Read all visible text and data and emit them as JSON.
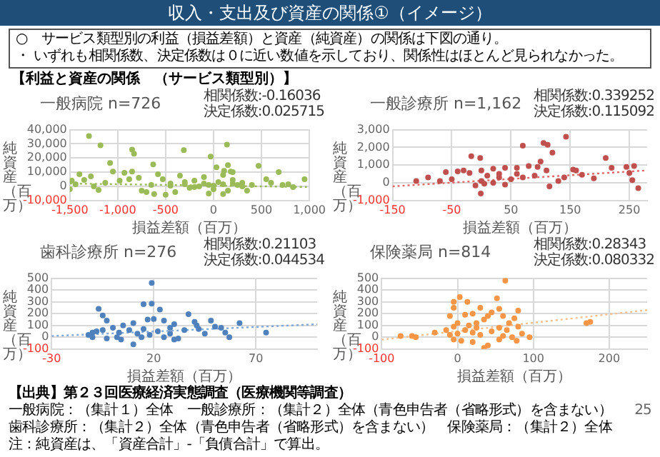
{
  "chart_data": [
    {
      "type": "other",
      "title": "収入・支出及び資産の関係①（イメージ）",
      "subtitle": "【利益と資産の関係　（サービス類型別）】",
      "annotations": [
        "○　サービス類型別の利益（損益差額）と資産（純資産）の関係は下図の通り。",
        "・ いずれも相関係数、決定係数は０に近い数値を示しており、関係性はほとんど見られなかった。"
      ]
    },
    {
      "type": "scatter",
      "title": "一般病院 n=726",
      "annotations": [
        "相関係数:-0.16036",
        "決定係数:0.025715"
      ],
      "xlabel": "損益差額（百万）",
      "ylabel": "純資産（百万）",
      "xlim": [
        -1500,
        1000
      ],
      "xticks": [
        {
          "value": -1500,
          "label": "-1,500"
        },
        {
          "value": -1000,
          "label": "-1,000"
        },
        -500,
        0,
        500,
        {
          "value": 1000,
          "label": "1,000"
        }
      ],
      "ylim": [
        -10000,
        40000
      ],
      "yticks": [
        {
          "value": -10000,
          "label": "-10,000"
        },
        0,
        {
          "value": 10000,
          "label": "10,000"
        },
        {
          "value": 20000,
          "label": "20,000"
        },
        {
          "value": 30000,
          "label": "30,000"
        },
        {
          "value": 40000,
          "label": "40,000"
        }
      ],
      "grid": true,
      "series": [
        {
          "type": "scatter",
          "color": "#9bbb59",
          "marker": "circle",
          "x": [
            -1300,
            -1180,
            -850,
            -830,
            -1080,
            -310,
            -30,
            140,
            -630,
            -1500,
            -1480,
            -1440,
            -1400,
            -1350,
            -1280,
            -1250,
            -1200,
            -1130,
            -1050,
            -980,
            -930,
            -880,
            -850,
            -780,
            -750,
            -650,
            -620,
            -580,
            -530,
            -450,
            -400,
            -350,
            -300,
            -250,
            -200,
            -150,
            -100,
            -50,
            0,
            30,
            50,
            100,
            110,
            150,
            150,
            200,
            250,
            300,
            350,
            180,
            200,
            100,
            -50,
            470,
            550,
            600,
            680,
            720,
            780,
            830,
            950,
            -700,
            -500,
            -450,
            -300,
            -200,
            -100,
            0,
            100,
            200,
            300,
            400
          ],
          "values": [
            35500,
            29000,
            26000,
            23000,
            16500,
            25500,
            21000,
            29500,
            15500,
            -2000,
            4000,
            1500,
            8500,
            4500,
            7000,
            0,
            -2500,
            2500,
            10500,
            4000,
            9500,
            5000,
            10500,
            6000,
            -3000,
            1000,
            -5500,
            8500,
            5000,
            2000,
            -4000,
            7500,
            3000,
            -1000,
            4000,
            0,
            6500,
            1000,
            -2000,
            13500,
            3000,
            8000,
            11000,
            15000,
            -3000,
            4500,
            1000,
            2500,
            -3000,
            10500,
            10000,
            -5500,
            -5000,
            14500,
            5000,
            2500,
            10000,
            1000,
            1500,
            -500,
            5000,
            -4000,
            -6000,
            500,
            1500,
            -500,
            2000,
            500,
            1500,
            2000,
            0,
            1000
          ]
        },
        {
          "type": "line",
          "color": "#9bbb59",
          "line_style": "dotted",
          "marker": "none",
          "x": [
            -1500,
            1000
          ],
          "values": [
            2000,
            -500
          ]
        }
      ]
    },
    {
      "type": "scatter",
      "title": "一般診療所 n=1,162",
      "annotations": [
        "相関係数:0.339252",
        "決定係数:0.115092"
      ],
      "xlabel": "損益差額（百万）",
      "ylabel": "純資産（百万）",
      "xlim": [
        -150,
        280
      ],
      "xticks": [
        -150,
        -50,
        50,
        150,
        250
      ],
      "ylim": [
        -1000,
        3000
      ],
      "yticks": [
        {
          "value": -1000,
          "label": "-1,000"
        },
        0,
        {
          "value": 1000,
          "label": "1,000"
        },
        {
          "value": 2000,
          "label": "2,000"
        },
        {
          "value": 3000,
          "label": "3,000"
        }
      ],
      "grid": true,
      "series": [
        {
          "type": "scatter",
          "color": "#c0504d",
          "marker": "circle",
          "x": [
            70,
            105,
            112,
            143,
            120,
            -17,
            -2,
            100,
            210,
            245,
            258,
            265,
            -1,
            -30,
            -40,
            -60,
            -90,
            -110,
            220,
            155,
            160,
            170,
            190,
            250,
            255,
            140,
            130,
            115,
            95,
            80,
            60,
            40,
            20,
            0,
            -20,
            10,
            30,
            50,
            70,
            90,
            0,
            20,
            40,
            -10,
            5,
            -50,
            60,
            110,
            -70,
            30
          ],
          "values": [
            2100,
            2250,
            2150,
            2600,
            1700,
            1500,
            1400,
            1200,
            1400,
            900,
            950,
            -300,
            -600,
            700,
            650,
            600,
            300,
            100,
            850,
            750,
            700,
            450,
            250,
            550,
            150,
            300,
            100,
            -200,
            900,
            950,
            850,
            850,
            800,
            700,
            550,
            400,
            300,
            200,
            300,
            400,
            100,
            0,
            -100,
            -150,
            -50,
            200,
            500,
            700,
            100,
            500
          ]
        },
        {
          "type": "line",
          "color": "#e06666",
          "line_style": "dotted",
          "marker": "none",
          "x": [
            -150,
            280
          ],
          "values": [
            -200,
            700
          ]
        }
      ]
    },
    {
      "type": "scatter",
      "title": "歯科診療所 n=276",
      "annotations": [
        "相関係数:0.21103",
        "決定係数:0.044534"
      ],
      "xlabel": "損益差額（百万）",
      "ylabel": "純資産（百万）",
      "xlim": [
        -30,
        100
      ],
      "xticks": [
        -30,
        20,
        70
      ],
      "ylim": [
        -100,
        500
      ],
      "yticks": [
        -100,
        0,
        100,
        200,
        300,
        400,
        500
      ],
      "grid": true,
      "series": [
        {
          "type": "scatter",
          "color": "#4f81bd",
          "marker": "circle",
          "x": [
            19,
            15,
            19,
            23,
            -7,
            -5,
            -3,
            37,
            48,
            62,
            75,
            53,
            55,
            57,
            40,
            41,
            30,
            28,
            25,
            17,
            20,
            10,
            5,
            0,
            -5,
            -10,
            -12,
            -10,
            -3,
            3,
            8,
            12,
            15,
            18,
            22,
            25,
            28,
            32,
            35,
            42,
            45,
            50,
            4,
            10,
            -8,
            2,
            14,
            30
          ],
          "values": [
            460,
            280,
            285,
            235,
            240,
            185,
            140,
            195,
            140,
            120,
            40,
            80,
            40,
            0,
            130,
            100,
            110,
            80,
            140,
            150,
            155,
            120,
            100,
            80,
            60,
            40,
            20,
            0,
            -10,
            40,
            60,
            30,
            70,
            20,
            50,
            0,
            30,
            -10,
            60,
            70,
            30,
            90,
            -20,
            -60,
            50,
            0,
            0,
            -20
          ]
        },
        {
          "type": "line",
          "color": "#7fa7d9",
          "line_style": "dotted",
          "marker": "none",
          "x": [
            -30,
            100
          ],
          "values": [
            10,
            110
          ]
        }
      ]
    },
    {
      "type": "scatter",
      "title": "保険薬局 n=814",
      "annotations": [
        "相関係数:0.28343",
        "決定係数:0.080332"
      ],
      "xlabel": "損益差額（百万）",
      "ylabel": "純資産（百万）",
      "xlim": [
        -100,
        250
      ],
      "xticks": [
        -100,
        0,
        100,
        200
      ],
      "ylim": [
        -100,
        500
      ],
      "yticks": [
        -100,
        0,
        100,
        200,
        300,
        400,
        500
      ],
      "grid": true,
      "series": [
        {
          "type": "scatter",
          "color": "#f79646",
          "marker": "circle",
          "x": [
            63,
            52,
            3,
            13,
            -5,
            -5,
            55,
            45,
            80,
            30,
            60,
            75,
            68,
            -10,
            10,
            20,
            35,
            40,
            25,
            0,
            -5,
            -15,
            -30,
            -60,
            -75,
            -55,
            175,
            170,
            95,
            85,
            78,
            72,
            55,
            40,
            35,
            20,
            5,
            -5,
            0,
            10,
            20,
            30,
            45,
            55,
            65,
            80,
            15,
            25,
            -10,
            60
          ],
          "values": [
            480,
            330,
            340,
            300,
            300,
            250,
            240,
            210,
            225,
            250,
            180,
            160,
            120,
            180,
            190,
            200,
            150,
            180,
            120,
            120,
            90,
            60,
            40,
            10,
            10,
            0,
            130,
            120,
            0,
            30,
            -30,
            0,
            -20,
            -70,
            -90,
            -40,
            -30,
            -20,
            30,
            60,
            40,
            20,
            50,
            80,
            60,
            90,
            100,
            80,
            20,
            10
          ]
        },
        {
          "type": "line",
          "color": "#fbc08f",
          "line_style": "dotted",
          "marker": "none",
          "x": [
            -100,
            250
          ],
          "values": [
            -20,
            230
          ]
        }
      ]
    },
    {
      "type": "other",
      "annotations": [
        "【出典】第２３回医療経済実態調査（医療機関等調査）",
        "一般病院：（集計１）全体　一般診療所：（集計２）全体（青色申告者（省略形式）を含まない）",
        "歯科診療所：（集計２）全体（青色申告者（省略形式）を含まない）　保険薬局：（集計２）全体",
        "注：純資産は、「資産合計」-「負債合計」で算出。",
        "25"
      ]
    }
  ]
}
